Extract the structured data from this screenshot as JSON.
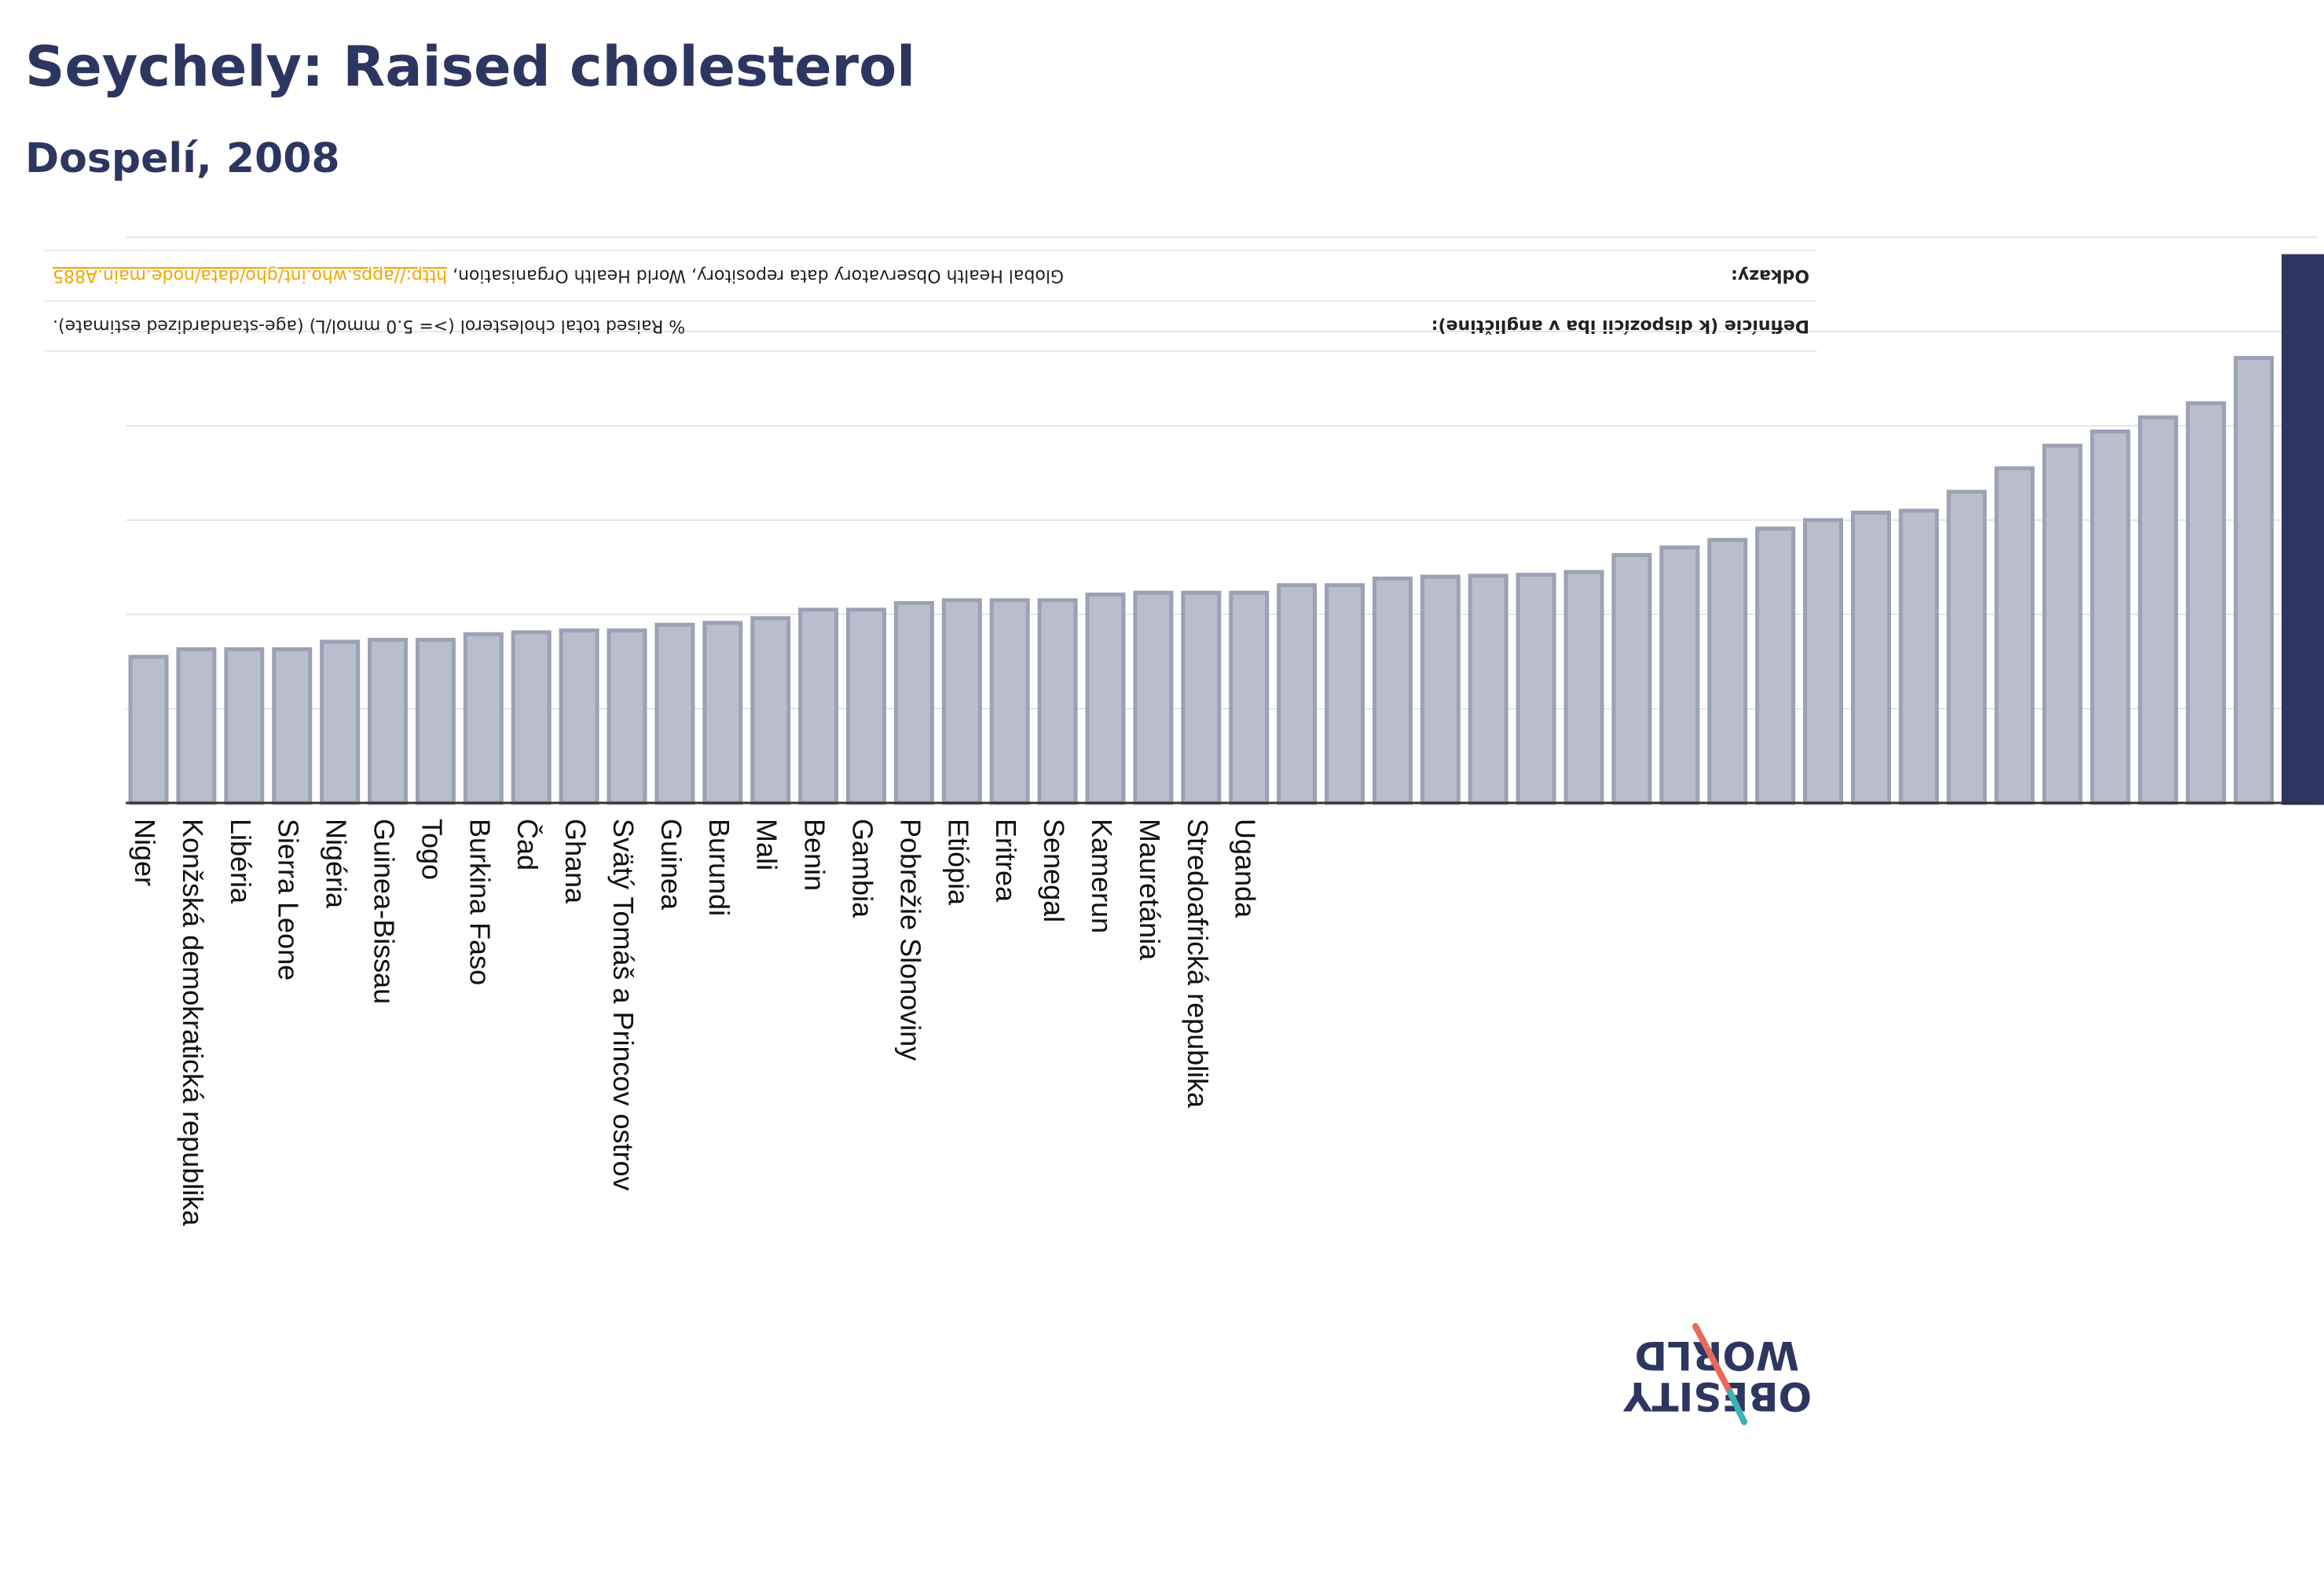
{
  "title": "Seychely: Raised cholesterol",
  "subtitle": "Dospelí, 2008",
  "info": {
    "definition_label": "Definície (k dispozícii iba v angličtine):",
    "definition_text": "% Raised total cholesterol (>= 5.0 mmol/L) (age-standardized estimate).",
    "references_label": "Odkazy:",
    "references_text": "Global Health Observatory data repository, World Health Organisation,",
    "references_link": "http://apps.who.int/gho/data/node.main.A885"
  },
  "logo": {
    "line1": "OBESITY",
    "line2": "WORLD"
  },
  "colors": {
    "bar": "#b9bdcc",
    "bar_stroke": "#9ca1b6",
    "highlight": "#2d3661",
    "grid": "#e6e6e6",
    "label": "#111111",
    "link": "#f0a800"
  },
  "chart_data": {
    "type": "bar",
    "title": "Seychely: Raised cholesterol",
    "subtitle": "Dospelí, 2008",
    "highlight": "Seychely",
    "ylim": [
      0,
      60
    ],
    "grid": true,
    "categories": [
      "Niger",
      "Konžská demokratická republika",
      "Libéria",
      "Sierra Leone",
      "Nigéria",
      "Guinea-Bissau",
      "Togo",
      "Burkina Faso",
      "Čad",
      "Ghana",
      "Svätý Tomáš a Princov ostrov",
      "Guinea",
      "Burundi",
      "Mali",
      "Benin",
      "Gambia",
      "Pobrežie Slonoviny",
      "Etiópia",
      "Eritrea",
      "Senegal",
      "Kamerun",
      "Mauretánia",
      "Stredoafrická republika",
      "Uganda",
      "",
      "",
      "",
      "",
      "",
      "",
      "",
      "",
      "",
      "",
      "",
      "",
      "",
      "",
      "",
      "",
      "",
      "",
      "",
      "",
      "",
      ""
    ],
    "values": [
      15.5,
      16.3,
      16.3,
      16.3,
      17.1,
      17.3,
      17.3,
      17.9,
      18.1,
      18.3,
      18.3,
      18.9,
      19.1,
      19.6,
      20.5,
      20.5,
      21.2,
      21.5,
      21.5,
      21.5,
      22.1,
      22.3,
      22.3,
      22.3,
      23.1,
      23.1,
      23.8,
      24.0,
      24.1,
      24.2,
      24.5,
      26.3,
      27.1,
      27.9,
      29.1,
      30.0,
      30.8,
      31.0,
      33.0,
      35.5,
      37.9,
      39.4,
      40.9,
      42.4,
      47.2,
      58.0
    ]
  }
}
